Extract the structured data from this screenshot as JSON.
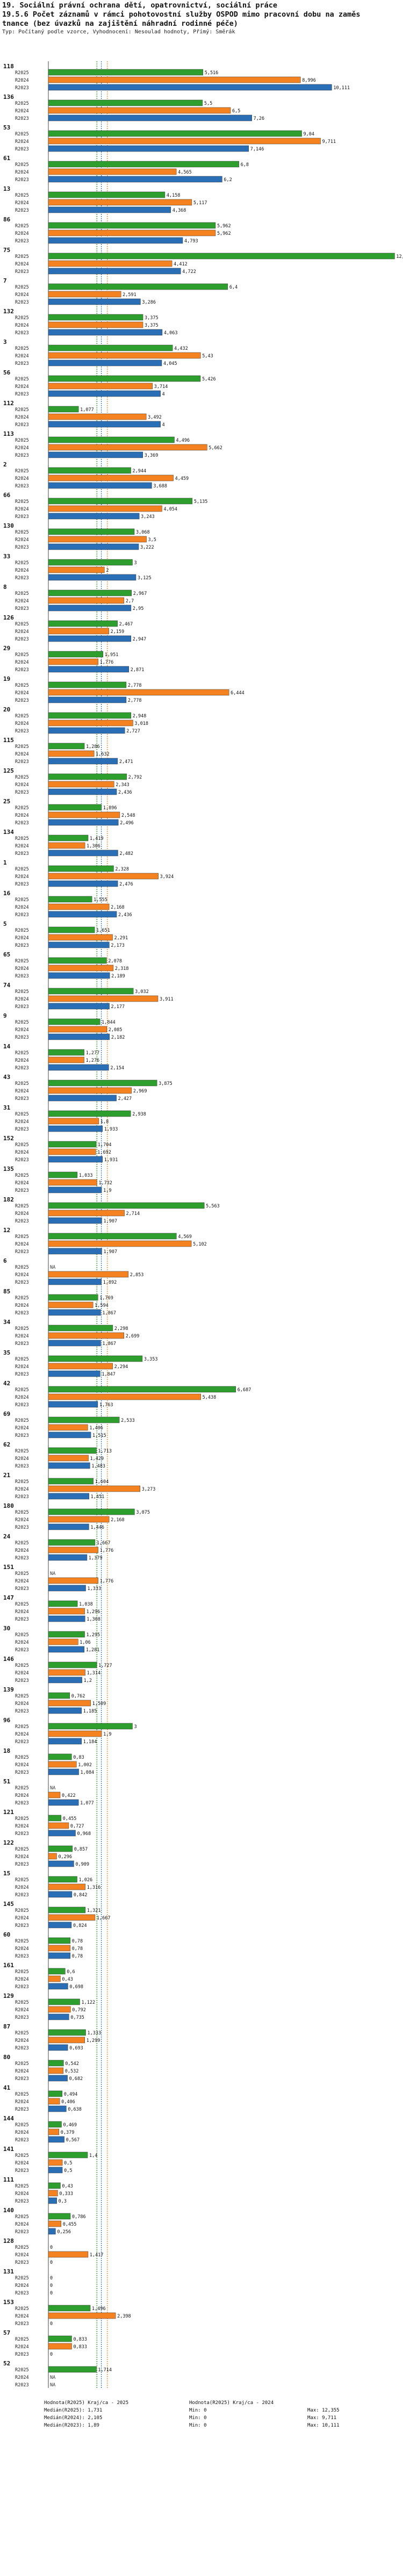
{
  "header": {
    "title1": "19. Sociální právní ochrana dětí, opatrovnictví, sociální práce",
    "title2": "19.5.6 Počet záznamů v rámci pohotovostní služby OSPOD mimo pracovní dobu na zaměs",
    "title3": "tnance (bez úvazků na zajištění náhradní rodinné péče)",
    "subtitle": "Typ: Počítaný podle vzorce, Vyhodnocení: Nesoulad hodnoty, Přímý: Směrák"
  },
  "chart_data": {
    "type": "bar",
    "orientation": "horizontal",
    "series_labels": [
      "R2025",
      "R2024",
      "R2023"
    ],
    "colors": {
      "R2025": "#2e9e2e",
      "R2024": "#f58220",
      "R2023": "#2a6fb5"
    },
    "xlim": [
      0,
      12.5
    ],
    "reference_lines": [
      {
        "label": "Medián",
        "value": 1.731,
        "color": "#2e9e2e"
      },
      {
        "label": "Medián",
        "value": 2.105,
        "color": "#f58220"
      },
      {
        "label": "Medián",
        "value": 1.89,
        "color": "#2a6fb5"
      }
    ],
    "groups": [
      {
        "id": "118",
        "values": [
          5.516,
          8.996,
          10.111
        ]
      },
      {
        "id": "136",
        "values": [
          5.5,
          6.5,
          7.26
        ]
      },
      {
        "id": "53",
        "values": [
          9.04,
          9.711,
          7.146
        ]
      },
      {
        "id": "61",
        "values": [
          6.8,
          4.565,
          6.2
        ]
      },
      {
        "id": "13",
        "values": [
          4.158,
          5.117,
          4.368
        ]
      },
      {
        "id": "86",
        "values": [
          5.962,
          5.962,
          4.793
        ]
      },
      {
        "id": "75",
        "values": [
          12.355,
          4.412,
          4.722
        ]
      },
      {
        "id": "7",
        "values": [
          6.4,
          2.591,
          3.286
        ]
      },
      {
        "id": "132",
        "values": [
          3.375,
          3.375,
          4.063
        ]
      },
      {
        "id": "3",
        "values": [
          4.432,
          5.43,
          4.045
        ]
      },
      {
        "id": "56",
        "values": [
          5.426,
          3.714,
          4.0
        ]
      },
      {
        "id": "112",
        "values": [
          1.077,
          3.492,
          4.0
        ]
      },
      {
        "id": "113",
        "values": [
          4.496,
          5.662,
          3.369
        ]
      },
      {
        "id": "2",
        "values": [
          2.944,
          4.459,
          3.688
        ]
      },
      {
        "id": "66",
        "values": [
          5.135,
          4.054,
          3.243
        ]
      },
      {
        "id": "130",
        "values": [
          3.068,
          3.5,
          3.222
        ]
      },
      {
        "id": "33",
        "values": [
          3.0,
          2.0,
          3.125
        ]
      },
      {
        "id": "8",
        "values": [
          2.967,
          2.7,
          2.95
        ]
      },
      {
        "id": "126",
        "values": [
          2.467,
          2.159,
          2.947
        ]
      },
      {
        "id": "29",
        "values": [
          1.951,
          1.776,
          2.871
        ]
      },
      {
        "id": "19",
        "values": [
          2.778,
          6.444,
          2.778
        ]
      },
      {
        "id": "20",
        "values": [
          2.948,
          3.018,
          2.727
        ]
      },
      {
        "id": "115",
        "values": [
          1.286,
          1.632,
          2.471
        ]
      },
      {
        "id": "125",
        "values": [
          2.792,
          2.343,
          2.436
        ]
      },
      {
        "id": "25",
        "values": [
          1.896,
          2.548,
          2.496
        ]
      },
      {
        "id": "134",
        "values": [
          1.419,
          1.306,
          2.482
        ]
      },
      {
        "id": "1",
        "values": [
          2.328,
          3.924,
          2.476
        ]
      },
      {
        "id": "16",
        "values": [
          1.555,
          2.168,
          2.436
        ]
      },
      {
        "id": "5",
        "values": [
          1.651,
          2.291,
          2.173
        ]
      },
      {
        "id": "65",
        "values": [
          2.078,
          2.318,
          2.189
        ]
      },
      {
        "id": "74",
        "values": [
          3.032,
          3.911,
          2.177
        ]
      },
      {
        "id": "9",
        "values": [
          1.844,
          2.085,
          2.182
        ]
      },
      {
        "id": "14",
        "values": [
          1.277,
          1.276,
          2.154
        ]
      },
      {
        "id": "43",
        "values": [
          3.875,
          2.969,
          2.427
        ]
      },
      {
        "id": "31",
        "values": [
          2.938,
          1.8,
          1.933
        ]
      },
      {
        "id": "152",
        "values": [
          1.704,
          1.692,
          1.931
        ]
      },
      {
        "id": "135",
        "values": [
          1.033,
          1.732,
          1.9
        ]
      },
      {
        "id": "182",
        "values": [
          5.563,
          2.714,
          1.907
        ]
      },
      {
        "id": "12",
        "values": [
          4.569,
          5.102,
          1.907
        ]
      },
      {
        "id": "6",
        "values": [
          null,
          2.853,
          1.892
        ]
      },
      {
        "id": "85",
        "values": [
          1.769,
          1.594,
          1.867
        ]
      },
      {
        "id": "34",
        "values": [
          2.298,
          2.699,
          1.867
        ]
      },
      {
        "id": "35",
        "values": [
          3.353,
          2.294,
          1.847
        ]
      },
      {
        "id": "42",
        "values": [
          6.687,
          5.438,
          1.763
        ]
      },
      {
        "id": "69",
        "values": [
          2.533,
          1.406,
          1.515
        ]
      },
      {
        "id": "62",
        "values": [
          1.713,
          1.429,
          1.483
        ]
      },
      {
        "id": "21",
        "values": [
          1.604,
          3.273,
          1.451
        ]
      },
      {
        "id": "180",
        "values": [
          3.075,
          2.168,
          1.446
        ]
      },
      {
        "id": "24",
        "values": [
          1.667,
          1.776,
          1.379
        ]
      },
      {
        "id": "151",
        "values": [
          null,
          1.776,
          1.333
        ]
      },
      {
        "id": "147",
        "values": [
          1.038,
          1.296,
          1.308
        ]
      },
      {
        "id": "30",
        "values": [
          1.295,
          1.06,
          1.281
        ]
      },
      {
        "id": "146",
        "values": [
          1.727,
          1.314,
          1.2
        ]
      },
      {
        "id": "139",
        "values": [
          0.762,
          1.509,
          1.185
        ]
      },
      {
        "id": "96",
        "values": [
          3.0,
          1.9,
          1.184
        ]
      },
      {
        "id": "18",
        "values": [
          0.83,
          1.002,
          1.084
        ]
      },
      {
        "id": "51",
        "values": [
          null,
          0.422,
          1.077
        ]
      },
      {
        "id": "121",
        "values": [
          0.455,
          0.727,
          0.968
        ]
      },
      {
        "id": "122",
        "values": [
          0.857,
          0.296,
          0.909
        ]
      },
      {
        "id": "15",
        "values": [
          1.026,
          1.316,
          0.842
        ]
      },
      {
        "id": "145",
        "values": [
          1.321,
          1.667,
          0.824
        ]
      },
      {
        "id": "60",
        "values": [
          0.78,
          0.78,
          0.78
        ]
      },
      {
        "id": "161",
        "values": [
          0.6,
          0.43,
          0.698
        ]
      },
      {
        "id": "129",
        "values": [
          1.122,
          0.792,
          0.735
        ]
      },
      {
        "id": "87",
        "values": [
          1.333,
          1.299,
          0.693
        ]
      },
      {
        "id": "80",
        "values": [
          0.542,
          0.532,
          0.682
        ]
      },
      {
        "id": "41",
        "values": [
          0.494,
          0.406,
          0.638
        ]
      },
      {
        "id": "144",
        "values": [
          0.469,
          0.379,
          0.567
        ]
      },
      {
        "id": "141",
        "values": [
          1.4,
          0.5,
          0.5
        ]
      },
      {
        "id": "111",
        "values": [
          0.43,
          0.333,
          0.3
        ]
      },
      {
        "id": "140",
        "values": [
          0.786,
          0.455,
          0.256
        ]
      },
      {
        "id": "128",
        "values": [
          0.0,
          1.417,
          0.0
        ]
      },
      {
        "id": "131",
        "values": [
          0.0,
          0.0,
          0.0
        ]
      },
      {
        "id": "153",
        "values": [
          1.496,
          2.398,
          0.0
        ]
      },
      {
        "id": "57",
        "values": [
          0.833,
          0.833,
          0.0
        ]
      },
      {
        "id": "52",
        "values": [
          1.714,
          null,
          null
        ]
      }
    ]
  },
  "legend": {
    "rows": [
      {
        "label": "Hodnota(R2025) Kraj/ca - 2025",
        "stat": "Hodnota(R2025) Kraj/ca - 2024",
        "extra": ""
      },
      {
        "label": "Medián(R2025): 1,731",
        "stat": "Min: 0",
        "extra": "Max: 12,355"
      },
      {
        "label": "Medián(R2024): 2,105",
        "stat": "Min: 0",
        "extra": "Max: 9,711"
      },
      {
        "label": "Medián(R2023): 1,89",
        "stat": "Min: 0",
        "extra": "Max: 10,111"
      }
    ]
  }
}
